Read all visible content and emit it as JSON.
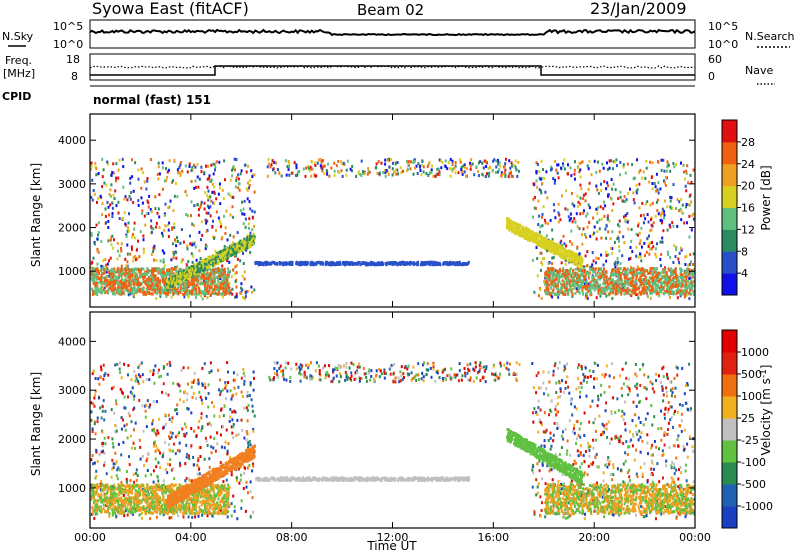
{
  "header": {
    "station": "Syowa East (fitACF)",
    "beam": "Beam 02",
    "date": "23/Jan/2009"
  },
  "top_panels": {
    "nsky_label": "N.Sky",
    "nsearch_label": "N.Search",
    "noise_ticks_left": [
      "10^5",
      "10^0"
    ],
    "noise_ticks_right": [
      "10^5",
      "10^0"
    ],
    "freq_label_line1": "Freq.",
    "freq_label_line2": "[MHz]",
    "freq_ticks": [
      "18",
      "8"
    ],
    "nave_label": "Nave",
    "nave_ticks": [
      "60",
      "0"
    ],
    "cpid_label": "CPID",
    "cpid_text": "normal (fast) 151"
  },
  "chart_data": [
    {
      "type": "heatmap",
      "name": "power",
      "ylabel": "Slant Range [km]",
      "yticks": [
        "1000",
        "2000",
        "3000",
        "4000"
      ],
      "ylim": [
        180,
        4600
      ],
      "colorbar": {
        "label": "Power [dB]",
        "ticks": [
          "4",
          "8",
          "12",
          "16",
          "20",
          "24",
          "28"
        ],
        "colors": [
          "#1010e8",
          "#2850c8",
          "#2a8a60",
          "#60c080",
          "#d8d020",
          "#f0a020",
          "#f06010",
          "#e01010"
        ]
      },
      "grid": false
    },
    {
      "type": "heatmap",
      "name": "velocity",
      "ylabel": "Slant Range [km]",
      "yticks": [
        "1000",
        "2000",
        "3000",
        "4000"
      ],
      "ylim": [
        180,
        4600
      ],
      "colorbar": {
        "label": "Velocity [m s",
        "label_sup": "-1",
        "label_end": "]",
        "ticks": [
          "1000",
          "500",
          "100",
          "25",
          "-25",
          "-100",
          "-500",
          "-1000"
        ],
        "colors": [
          "#1840c0",
          "#2060b0",
          "#2a8a50",
          "#60c040",
          "#c0c0c0",
          "#f0b020",
          "#f07010",
          "#e02010",
          "#e00000"
        ]
      },
      "grid": false
    }
  ],
  "xaxis": {
    "label": "Time UT",
    "ticks": [
      "00:00",
      "04:00",
      "08:00",
      "12:00",
      "16:00",
      "20:00",
      "00:00"
    ],
    "hours": [
      0,
      4,
      8,
      12,
      16,
      20,
      24
    ]
  }
}
